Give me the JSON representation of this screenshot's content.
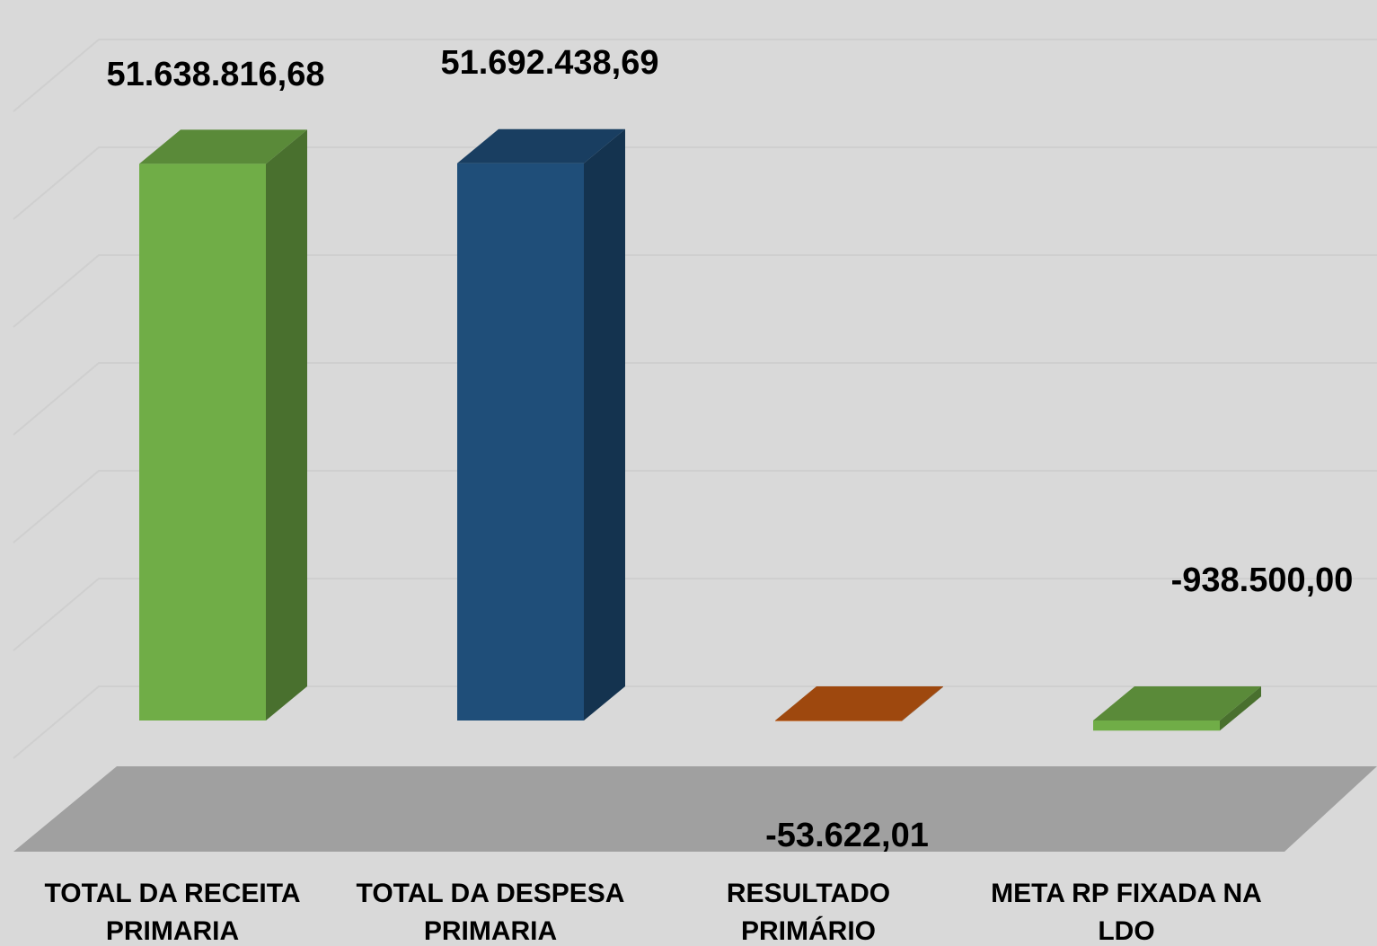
{
  "chart_data": {
    "type": "bar",
    "categories": [
      "TOTAL DA RECEITA PRIMARIA",
      "TOTAL DA DESPESA PRIMARIA",
      "RESULTADO PRIMÁRIO",
      "META RP FIXADA NA LDO"
    ],
    "values": [
      51638816.68,
      51692438.69,
      -53622.01,
      -938500
    ],
    "value_labels": [
      "51.638.816,68",
      "51.692.438,69",
      "-53.622,01",
      "-938.500,00"
    ],
    "colors": [
      "#70ad47",
      "#1f4e79",
      "#c55a11",
      "#70ad47"
    ],
    "ylim": [
      -10000000,
      60000000
    ],
    "yticks": [
      -10000000,
      0,
      10000000,
      20000000,
      30000000,
      40000000,
      50000000,
      60000000
    ],
    "grid": true
  }
}
